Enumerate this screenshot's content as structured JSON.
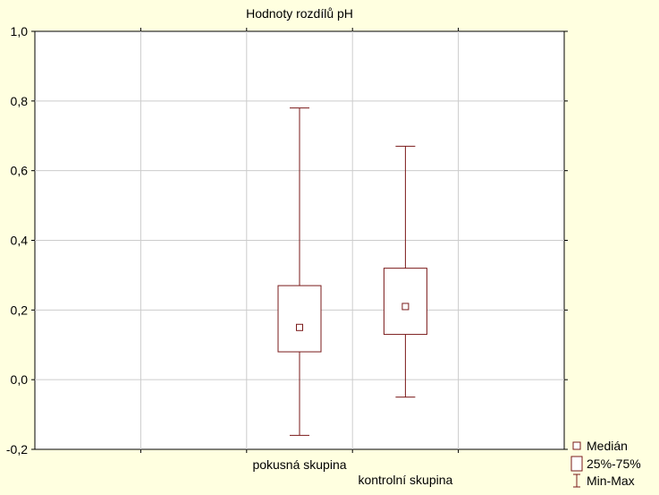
{
  "chart_data": {
    "type": "boxplot",
    "title": "Hodnoty rozdílů pH",
    "xlabel": "",
    "ylabel": "",
    "ylim": [
      -0.2,
      1.0
    ],
    "yticks": [
      -0.2,
      0.0,
      0.2,
      0.4,
      0.6,
      0.8,
      1.0
    ],
    "ytick_labels": [
      "-0,2",
      "0,0",
      "0,2",
      "0,4",
      "0,6",
      "0,8",
      "1,0"
    ],
    "grid": true,
    "legend_position": "bottom-right",
    "categories": [
      "pokusná skupina",
      "kontrolní skupina"
    ],
    "boxes": [
      {
        "category": "pokusná skupina",
        "min": -0.16,
        "q1": 0.08,
        "median": 0.15,
        "q3": 0.27,
        "max": 0.78
      },
      {
        "category": "kontrolní skupina",
        "min": -0.05,
        "q1": 0.13,
        "median": 0.21,
        "q3": 0.32,
        "max": 0.67
      }
    ],
    "legend": [
      {
        "label": "Medián",
        "symbol": "median"
      },
      {
        "label": "25%-75%",
        "symbol": "box"
      },
      {
        "label": "Min-Max",
        "symbol": "whisker"
      }
    ],
    "colors": {
      "background": "#ffffe0",
      "plot_area": "#ffffff",
      "box_stroke": "#7a1a1a",
      "grid": "#cccccc",
      "axis": "#000000"
    }
  }
}
